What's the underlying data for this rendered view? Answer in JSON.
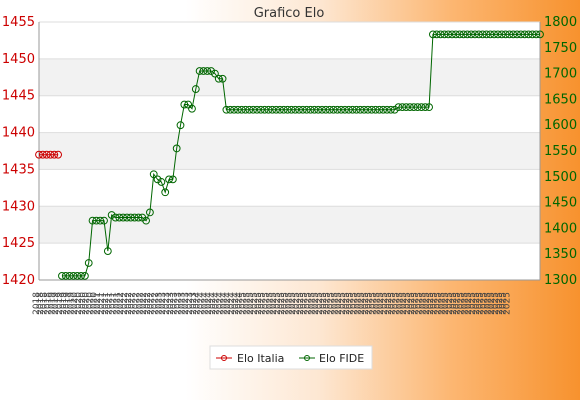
{
  "chart_data": {
    "type": "line",
    "title": "Grafico Elo",
    "grid": true,
    "legend_position": "bottom",
    "left_axis": {
      "ylim": [
        1420,
        1455
      ],
      "ticks": [
        1420,
        1425,
        1430,
        1435,
        1440,
        1445,
        1450,
        1455
      ],
      "color": "#cc0000"
    },
    "right_axis": {
      "ylim": [
        1300,
        1800
      ],
      "ticks": [
        1300,
        1350,
        1400,
        1450,
        1500,
        1550,
        1600,
        1650,
        1700,
        1750,
        1800
      ],
      "color": "#006600"
    },
    "series": [
      {
        "name": "Elo Italia",
        "axis": "left",
        "color": "#cc0000",
        "values": [
          1437,
          1437,
          1437,
          1437,
          1437,
          1437,
          null,
          null,
          null,
          null,
          null,
          null,
          null,
          null,
          null,
          null,
          null,
          null,
          null,
          null,
          null,
          null,
          null,
          null,
          null,
          null,
          null,
          null,
          null,
          null,
          null,
          null,
          null,
          null,
          null,
          null,
          null,
          null,
          null,
          null,
          null,
          null,
          null,
          null,
          null,
          null,
          null,
          null,
          null,
          null,
          null,
          null,
          null,
          null,
          null,
          null,
          null,
          null,
          null,
          null,
          null,
          null,
          null,
          null,
          null,
          null,
          null,
          null,
          null,
          null,
          null,
          null,
          null,
          null,
          null,
          null,
          null,
          null,
          null,
          null,
          null,
          null,
          null,
          null,
          null,
          null,
          null,
          null,
          null,
          null,
          null,
          null,
          null,
          null,
          null,
          null,
          null,
          null,
          null,
          null,
          null,
          null,
          null,
          null,
          null,
          null,
          null,
          null,
          null,
          null,
          null,
          null,
          null,
          null,
          null,
          null,
          null,
          null,
          null,
          null,
          null,
          null,
          null,
          null
        ]
      },
      {
        "name": "Elo FIDE",
        "axis": "right",
        "color": "#006600",
        "values": [
          null,
          null,
          null,
          null,
          null,
          null,
          1308,
          1308,
          1308,
          1308,
          1308,
          1308,
          1308,
          1333,
          1415,
          1415,
          1415,
          1415,
          1356,
          1426,
          1421,
          1421,
          1421,
          1421,
          1421,
          1421,
          1421,
          1421,
          1415,
          1431,
          1505,
          1495,
          1490,
          1470,
          1495,
          1495,
          1555,
          1600,
          1640,
          1640,
          1632,
          1670,
          1705,
          1705,
          1705,
          1705,
          1700,
          1690,
          1690,
          1630,
          1630,
          1630,
          1630,
          1630,
          1630,
          1630,
          1630,
          1630,
          1630,
          1630,
          1630,
          1630,
          1630,
          1630,
          1630,
          1630,
          1630,
          1630,
          1630,
          1630,
          1630,
          1630,
          1630,
          1630,
          1630,
          1630,
          1630,
          1630,
          1630,
          1630,
          1630,
          1630,
          1630,
          1630,
          1630,
          1630,
          1630,
          1630,
          1630,
          1630,
          1630,
          1630,
          1630,
          1630,
          1635,
          1635,
          1635,
          1635,
          1635,
          1635,
          1635,
          1635,
          1635,
          1776,
          1776,
          1776,
          1776,
          1776,
          1776,
          1776,
          1776,
          1776,
          1776,
          1776,
          1776,
          1776,
          1776,
          1776,
          1776,
          1776,
          1776,
          1776,
          1776,
          1776,
          1776,
          1776,
          1776,
          1776,
          1776,
          1776,
          1776,
          1776
        ]
      }
    ],
    "x_tick_labels": [
      "2018",
      "2018",
      "2018",
      "2018",
      "2019",
      "2019",
      "2019",
      "2019",
      "2019",
      "2019",
      "2020",
      "2020",
      "2020",
      "2020",
      "2020",
      "2020",
      "2021",
      "2021",
      "2021",
      "2021",
      "2021",
      "2021",
      "2022",
      "2022",
      "2022",
      "2022",
      "2022",
      "2022",
      "2022",
      "2022",
      "2022",
      "2022",
      "2023",
      "2023",
      "2023",
      "2023",
      "2023",
      "2023",
      "2023",
      "2023",
      "2023",
      "2023",
      "2024",
      "2024",
      "2024",
      "2024",
      "2024",
      "2024",
      "2024",
      "2024",
      "2024",
      "2024",
      "2024",
      "2024",
      "2025",
      "2025",
      "2025",
      "2025",
      "2025",
      "2025",
      "2025",
      "2025",
      "2025",
      "2025",
      "2025",
      "2025",
      "2025",
      "2025",
      "2025",
      "2025",
      "2025",
      "2025",
      "2025",
      "2025",
      "2025",
      "2025",
      "2025",
      "2025",
      "2025",
      "2025",
      "2025",
      "2025",
      "2025",
      "2025",
      "2025",
      "2025",
      "2025",
      "2025",
      "2025",
      "2025",
      "2025",
      "2025",
      "2025",
      "2025",
      "2025",
      "2025",
      "2025",
      "2025",
      "2025",
      "2025",
      "2025",
      "2025",
      "2025",
      "2025",
      "2025",
      "2025",
      "2025",
      "2025",
      "2025",
      "2025",
      "2025",
      "2025",
      "2025",
      "2025",
      "2025",
      "2025",
      "2025",
      "2025",
      "2025",
      "2025",
      "2025",
      "2025",
      "2025",
      "2025"
    ]
  }
}
